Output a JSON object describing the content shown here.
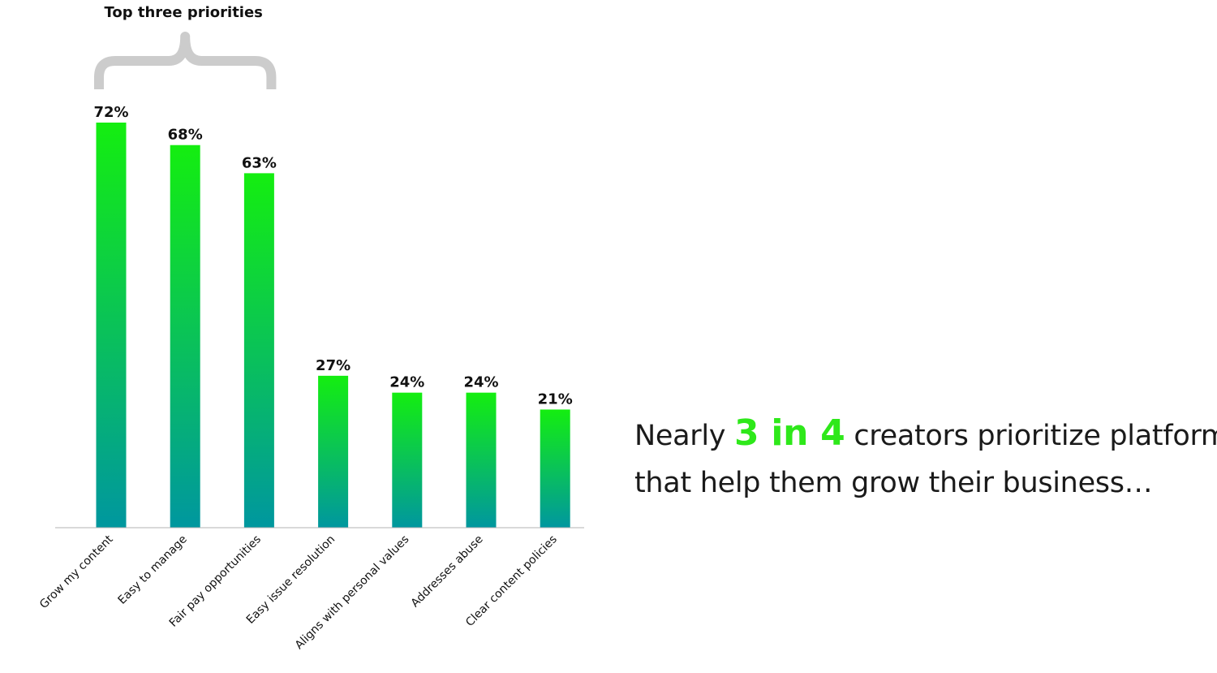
{
  "chart_data": {
    "type": "bar",
    "categories": [
      "Grow my content",
      "Easy to manage",
      "Fair pay opportunities",
      "Easy issue resolution",
      "Aligns with personal values",
      "Addresses abuse",
      "Clear content policies"
    ],
    "values": [
      72,
      68,
      63,
      27,
      24,
      24,
      21
    ],
    "value_labels": [
      "72%",
      "68%",
      "63%",
      "27%",
      "24%",
      "24%",
      "21%"
    ],
    "title": "",
    "xlabel": "",
    "ylabel": "",
    "ylim": [
      0,
      72
    ],
    "grid": false,
    "legend": "none",
    "bar_gradient_top": "#14ee10",
    "bar_gradient_bottom": "#00979f",
    "annotation": {
      "label": "Top three priorities",
      "spans_categories": [
        0,
        2
      ],
      "bracket_color": "#cccccc"
    }
  },
  "headline": {
    "prefix": "Nearly ",
    "highlight": "3 in 4",
    "line1_suffix": " creators prioritize platforms",
    "line2": "that help them grow their business…",
    "highlight_color": "#2ee81a"
  }
}
